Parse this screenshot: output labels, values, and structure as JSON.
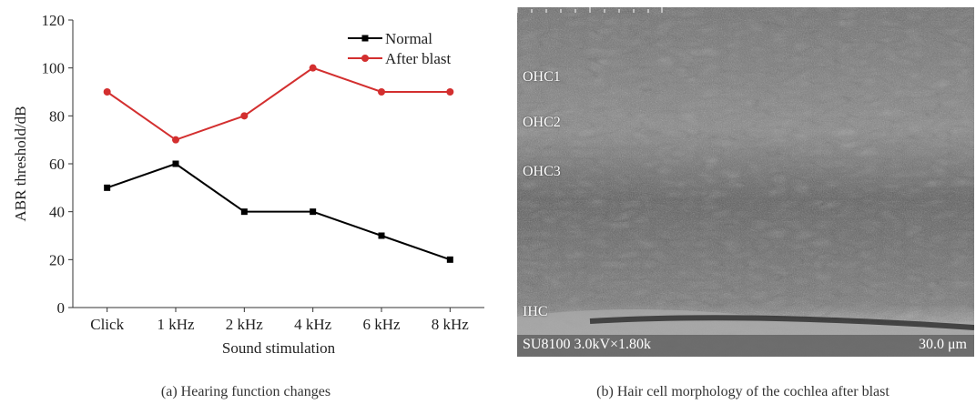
{
  "chart_data": {
    "type": "line",
    "categories": [
      "Click",
      "1 kHz",
      "2 kHz",
      "4 kHz",
      "6 kHz",
      "8 kHz"
    ],
    "series": [
      {
        "name": "Normal",
        "values": [
          50,
          60,
          40,
          40,
          30,
          20
        ],
        "color": "#000000",
        "marker": "square"
      },
      {
        "name": "After blast",
        "values": [
          90,
          70,
          80,
          100,
          90,
          90
        ],
        "color": "#d32f2f",
        "marker": "circle"
      }
    ],
    "xlabel": "Sound stimulation",
    "ylabel": "ABR threshold/dB",
    "ylim": [
      0,
      120
    ],
    "yticks": [
      0,
      20,
      40,
      60,
      80,
      100,
      120
    ],
    "grid": false,
    "legend": "top-right"
  },
  "image_b": {
    "labels": [
      "OHC1",
      "OHC2",
      "OHC3",
      "IHC"
    ],
    "info": "SU8100 3.0kV×1.80k",
    "scale": "30.0 μm"
  },
  "captions": {
    "a": "(a) Hearing function changes",
    "b": "(b) Hair cell morphology of the cochlea after blast"
  }
}
